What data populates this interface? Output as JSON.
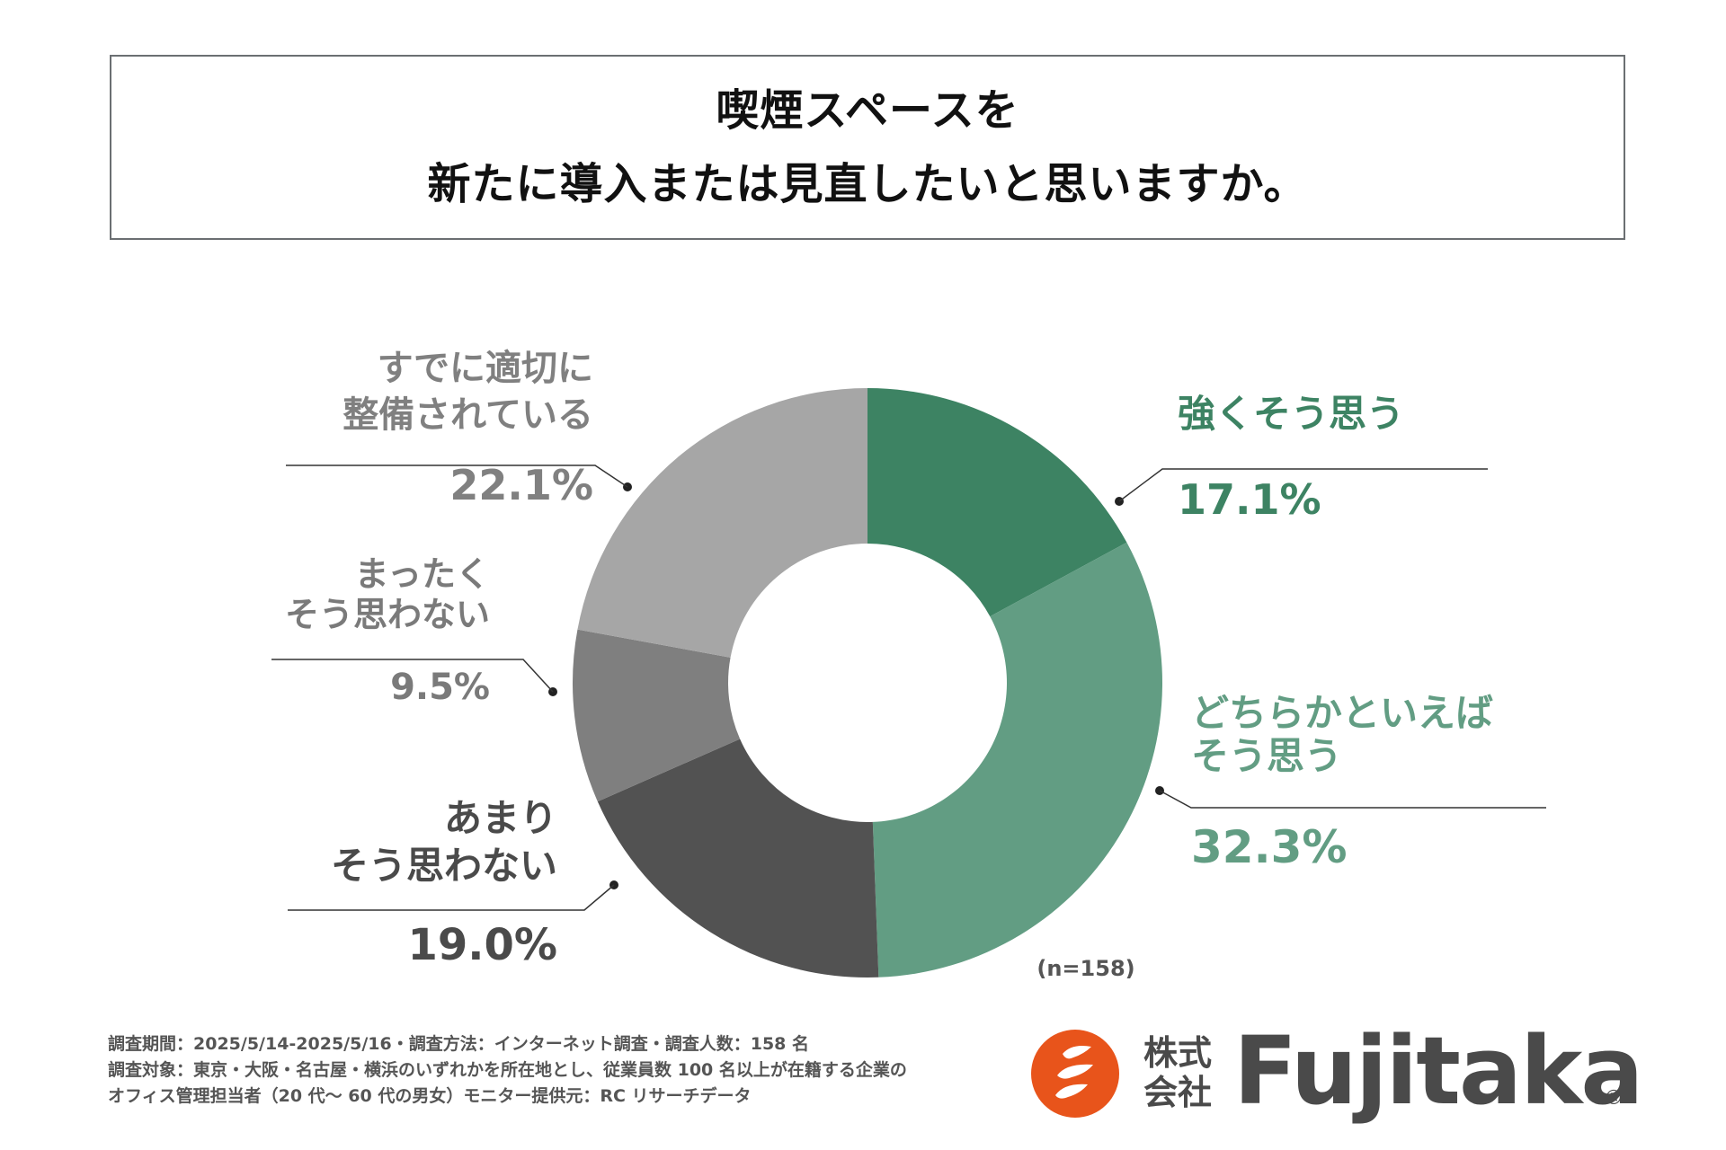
{
  "title": {
    "line1": "喫煙スペースを",
    "line2": "新たに導入または見直したいと思いますか。"
  },
  "chart_data": {
    "type": "pie",
    "variant": "donut",
    "title": "喫煙スペースを新たに導入または見直したいと思いますか。",
    "sample_size": "(n=158)",
    "unit": "%",
    "slices": [
      {
        "id": "strongly-agree",
        "label_lines": [
          "強くそう思う"
        ],
        "value": 17.1,
        "value_label": "17.1%",
        "color": "#3d8363",
        "label_color": "#3d8363"
      },
      {
        "id": "somewhat-agree",
        "label_lines": [
          "どちらかといえば",
          "そう思う"
        ],
        "value": 32.3,
        "value_label": "32.3%",
        "color": "#629d83",
        "label_color": "#629d83"
      },
      {
        "id": "somewhat-disagree",
        "label_lines": [
          "あまり",
          "そう思わない"
        ],
        "value": 19.0,
        "value_label": "19.0%",
        "color": "#525252",
        "label_color": "#4a4a4a"
      },
      {
        "id": "strongly-disagree",
        "label_lines": [
          "まったく",
          "そう思わない"
        ],
        "value": 9.5,
        "value_label": "9.5%",
        "color": "#7f7f7f",
        "label_color": "#7a7a7a"
      },
      {
        "id": "already-adequate",
        "label_lines": [
          "すでに適切に",
          "整備されている"
        ],
        "value": 22.1,
        "value_label": "22.1%",
        "color": "#a6a6a6",
        "label_color": "#808080"
      }
    ]
  },
  "footer": {
    "note1": "調査期間：2025/5/14-2025/5/16・調査方法：インターネット調査・調査人数：158 名",
    "note2": "調査対象：東京・大阪・名古屋・横浜のいずれかを所在地とし、従業員数 100 名以上が在籍する企業の",
    "note3": "オフィス管理担当者（20 代～ 60 代の男女）モニター提供元：RC リサーチデータ"
  },
  "logo": {
    "kanji_line1": "株式",
    "kanji_line2": "会社",
    "name": "Fujitaka",
    "registered": "®",
    "mark_color": "#e8541b"
  }
}
